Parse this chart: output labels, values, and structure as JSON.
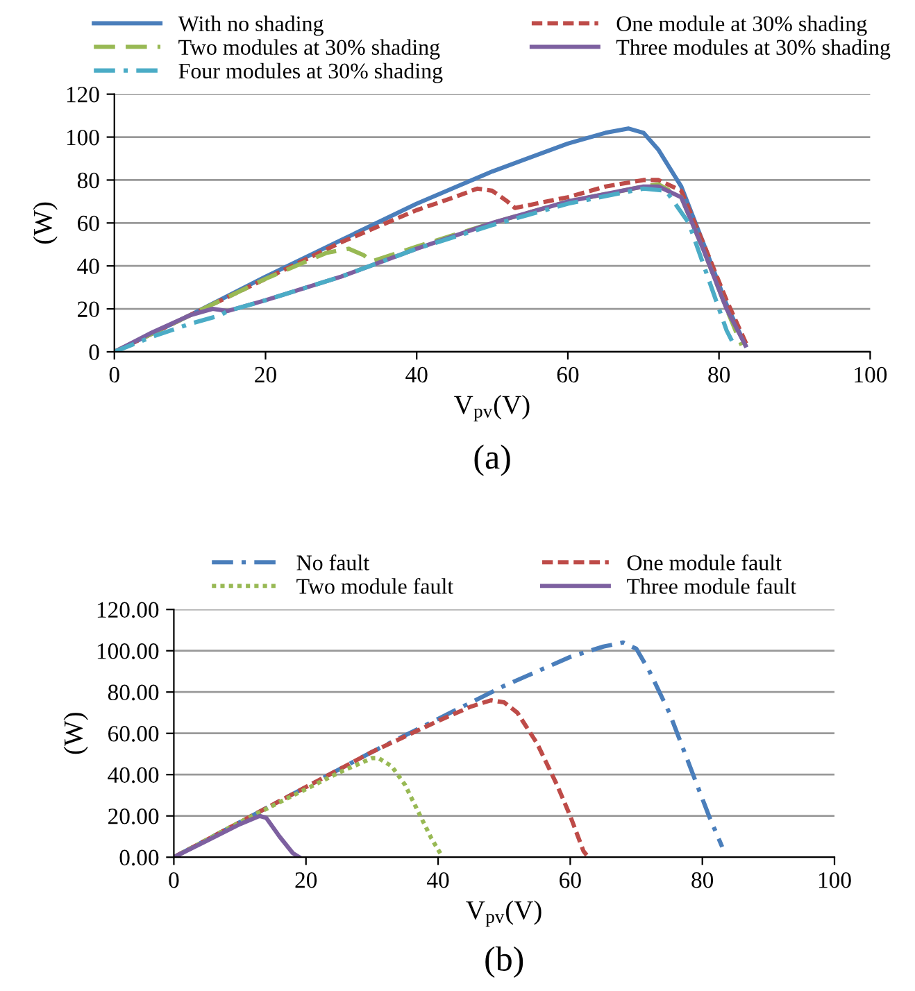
{
  "chart_data": [
    {
      "type": "line",
      "title": "(a)",
      "xlabel": "V$_{pv}$(V)",
      "ylabel": "(W)",
      "xlim": [
        0,
        100
      ],
      "ylim": [
        0,
        120
      ],
      "xticks": [
        0,
        20,
        40,
        60,
        80,
        100
      ],
      "yticks": [
        0,
        20,
        40,
        60,
        80,
        100,
        120
      ],
      "grid": "y",
      "legend": "top",
      "series": [
        {
          "name": "With no shading",
          "color": "#4a7ebb",
          "line_style": "solid",
          "x": [
            0,
            10,
            20,
            30,
            40,
            50,
            60,
            65,
            68,
            70,
            72,
            75,
            78,
            81,
            83.5
          ],
          "values": [
            0,
            17,
            35,
            52,
            69,
            84,
            97,
            102,
            104,
            102,
            94,
            77,
            50,
            22,
            3
          ]
        },
        {
          "name": "One module at 30% shading",
          "color": "#be4b48",
          "line_style": "dashed",
          "x": [
            0,
            10,
            20,
            30,
            40,
            45,
            48,
            50,
            52,
            53,
            60,
            65,
            70,
            72,
            75,
            78,
            81,
            83.7
          ],
          "values": [
            0,
            17,
            34,
            51,
            66,
            72,
            76,
            75,
            70,
            67,
            72,
            77,
            80,
            80,
            75,
            50,
            24,
            3
          ]
        },
        {
          "name": "Two modules at 30% shading",
          "color": "#98b954",
          "line_style": "longdash",
          "x": [
            0,
            10,
            20,
            28,
            31,
            33,
            34,
            40,
            50,
            60,
            70,
            72,
            75,
            78,
            81,
            83
          ],
          "values": [
            0,
            17,
            34,
            46,
            48,
            45,
            42,
            49,
            60,
            70,
            77,
            78,
            72,
            47,
            20,
            3
          ]
        },
        {
          "name": "Three modules at 30% shading",
          "color": "#7d60a0",
          "line_style": "solid",
          "x": [
            0,
            5,
            10,
            13,
            15,
            20,
            30,
            40,
            50,
            60,
            70,
            72,
            75,
            78,
            81,
            83.5
          ],
          "values": [
            0,
            9,
            17,
            20,
            19,
            24,
            35,
            48,
            60,
            70,
            77,
            77,
            72,
            47,
            20,
            3
          ]
        },
        {
          "name": "Four modules at 30% shading",
          "color": "#4bacc6",
          "line_style": "dashdot",
          "x": [
            0,
            5,
            10,
            14,
            15,
            20,
            30,
            40,
            50,
            60,
            70,
            73,
            76,
            79,
            81,
            82
          ],
          "values": [
            0,
            7,
            13,
            17,
            19,
            24,
            35,
            48,
            59,
            69,
            76,
            75,
            60,
            30,
            10,
            3
          ]
        }
      ]
    },
    {
      "type": "line",
      "title": "(b)",
      "xlabel": "V$_{pv}$(V)",
      "ylabel": "(W)",
      "xlim": [
        0,
        100
      ],
      "ylim": [
        0,
        120
      ],
      "xticks": [
        0,
        20,
        40,
        60,
        80,
        100
      ],
      "yticks": [
        {
          "value": 0,
          "label": "0.00"
        },
        {
          "value": 20,
          "label": "20.00"
        },
        {
          "value": 40,
          "label": "40.00"
        },
        {
          "value": 60,
          "label": "60.00"
        },
        {
          "value": 80,
          "label": "80.00"
        },
        {
          "value": 100,
          "label": "100.00"
        },
        {
          "value": 120,
          "label": "120.00"
        }
      ],
      "grid": "y",
      "legend": "top",
      "series": [
        {
          "name": "No fault",
          "color": "#4a7ebb",
          "line_style": "dashdot",
          "x": [
            0,
            10,
            20,
            30,
            40,
            50,
            60,
            65,
            68,
            70,
            72,
            75,
            78,
            81,
            83
          ],
          "values": [
            0,
            17,
            34,
            51,
            67,
            83,
            97,
            102,
            104,
            101,
            90,
            70,
            45,
            20,
            5
          ]
        },
        {
          "name": "One module fault",
          "color": "#be4b48",
          "line_style": "dashed",
          "x": [
            0,
            10,
            20,
            30,
            40,
            45,
            48,
            50,
            52,
            55,
            58,
            60,
            62,
            62.5
          ],
          "values": [
            0,
            17,
            34,
            51,
            66,
            73,
            76,
            75,
            70,
            55,
            35,
            20,
            3,
            1
          ]
        },
        {
          "name": "Two module fault",
          "color": "#98b954",
          "line_style": "dotted",
          "x": [
            0,
            10,
            20,
            25,
            30,
            31,
            33,
            35,
            37,
            39,
            40.5
          ],
          "values": [
            0,
            17,
            33,
            41,
            48,
            48,
            44,
            35,
            22,
            9,
            1
          ]
        },
        {
          "name": "Three module fault",
          "color": "#7d60a0",
          "line_style": "solid",
          "x": [
            0,
            5,
            10,
            13,
            14,
            16,
            18,
            19
          ],
          "values": [
            0,
            8,
            16,
            20,
            19,
            10,
            2,
            0
          ]
        }
      ]
    }
  ]
}
